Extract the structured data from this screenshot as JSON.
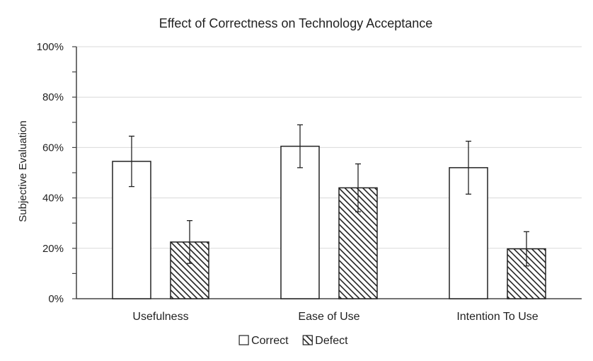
{
  "chart_data": {
    "type": "bar",
    "title": "Effect of Correctness  on Technology  Acceptance",
    "xlabel": "",
    "ylabel": "Subjective Evaluation",
    "ylim": [
      0,
      100
    ],
    "ytick_step": 20,
    "ytick_minor_step": 10,
    "ytick_suffix": "%",
    "grid": true,
    "legend_position": "bottom",
    "categories": [
      "Usefulness",
      "Ease of Use",
      "Intention To Use"
    ],
    "series": [
      {
        "name": "Correct",
        "pattern": "solid-white",
        "values": [
          54.5,
          60.5,
          52.0
        ],
        "error": [
          10.0,
          8.5,
          10.5
        ]
      },
      {
        "name": "Defect",
        "pattern": "diagonal-hatch",
        "values": [
          22.5,
          44.0,
          19.8
        ],
        "error": [
          8.5,
          9.5,
          6.8
        ]
      }
    ]
  },
  "colors": {
    "bar_fill": "#ffffff",
    "bar_stroke": "#222222",
    "hatch": "#222222",
    "grid": "#d9d9d9",
    "axis": "#444444",
    "text": "#222222"
  }
}
